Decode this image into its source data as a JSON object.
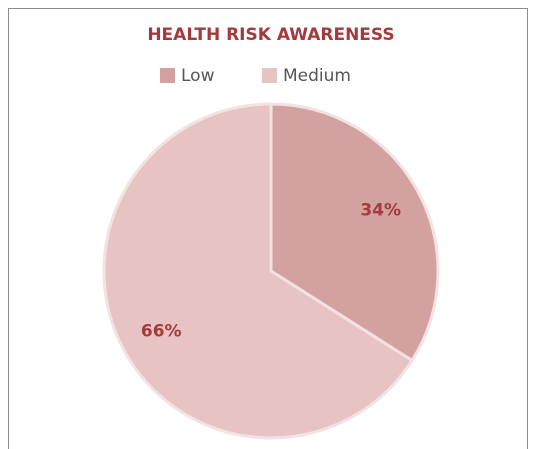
{
  "chart_data": {
    "type": "pie",
    "title": "HEALTH RISK AWARENESS",
    "categories": [
      "Low",
      "Medium"
    ],
    "values": [
      34,
      66
    ],
    "value_labels": [
      "34%",
      "66%"
    ],
    "colors": [
      "#d4a1a1",
      "#e7c3c3"
    ],
    "legend": "top"
  }
}
